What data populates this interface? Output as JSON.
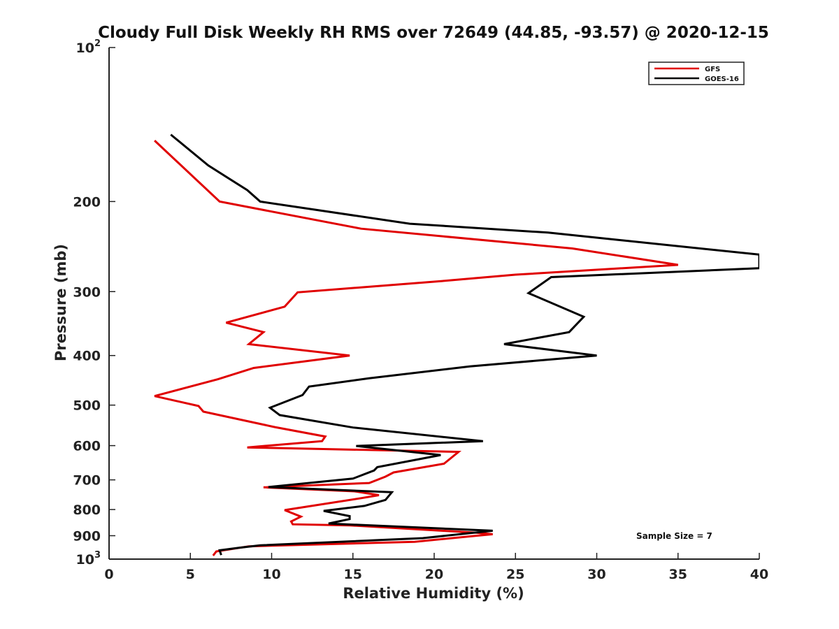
{
  "chart_data": {
    "type": "line",
    "title": "Cloudy Full Disk Weekly RH RMS over 72649 (44.85, -93.57) @ 2020-12-15",
    "xlabel": "Relative Humidity (%)",
    "ylabel": "Pressure (mb)",
    "xlim": [
      0,
      40
    ],
    "ylim": [
      100,
      1000
    ],
    "y_scale": "log",
    "y_reversed": true,
    "grid": false,
    "legend_position": "top-right",
    "x_ticks": [
      0,
      5,
      10,
      15,
      20,
      25,
      30,
      35,
      40
    ],
    "x_tick_labels": [
      "0",
      "5",
      "10",
      "15",
      "20",
      "25",
      "30",
      "35",
      "40"
    ],
    "y_ticks": [
      100,
      200,
      300,
      400,
      500,
      600,
      700,
      800,
      900,
      1000
    ],
    "y_tick_labels": [
      {
        "base": "10",
        "exp": "2"
      },
      {
        "base": "200",
        "exp": ""
      },
      {
        "base": "300",
        "exp": ""
      },
      {
        "base": "400",
        "exp": ""
      },
      {
        "base": "500",
        "exp": ""
      },
      {
        "base": "600",
        "exp": ""
      },
      {
        "base": "700",
        "exp": ""
      },
      {
        "base": "800",
        "exp": ""
      },
      {
        "base": "900",
        "exp": ""
      },
      {
        "base": "10",
        "exp": "3"
      }
    ],
    "annotation": "Sample Size = 7",
    "series": [
      {
        "name": "GFS",
        "color": "#e00000",
        "points": [
          [
            2.8,
            152
          ],
          [
            6.8,
            200
          ],
          [
            15.5,
            226
          ],
          [
            28.5,
            247
          ],
          [
            35,
            266
          ],
          [
            25,
            278
          ],
          [
            20.5,
            286
          ],
          [
            11.6,
            301
          ],
          [
            10.8,
            321
          ],
          [
            7.2,
            345
          ],
          [
            9.5,
            360
          ],
          [
            8.6,
            380
          ],
          [
            14.8,
            400
          ],
          [
            8.9,
            423
          ],
          [
            6.7,
            445
          ],
          [
            2.8,
            480
          ],
          [
            5.5,
            502
          ],
          [
            5.8,
            515
          ],
          [
            10.2,
            552
          ],
          [
            13.3,
            576
          ],
          [
            13.1,
            588
          ],
          [
            8.5,
            605
          ],
          [
            21.5,
            617
          ],
          [
            20.6,
            651
          ],
          [
            17.5,
            677
          ],
          [
            17,
            690
          ],
          [
            16,
            710
          ],
          [
            9.5,
            724
          ],
          [
            15.1,
            737
          ],
          [
            16.6,
            750
          ],
          [
            15.5,
            760
          ],
          [
            10.8,
            802
          ],
          [
            11.8,
            826
          ],
          [
            11.2,
            844
          ],
          [
            11.3,
            855
          ],
          [
            14.8,
            859
          ],
          [
            22.6,
            888
          ],
          [
            23.6,
            894
          ],
          [
            22.3,
            902
          ],
          [
            18.8,
            925
          ],
          [
            8.6,
            944
          ],
          [
            6.6,
            966
          ],
          [
            6.4,
            984
          ]
        ]
      },
      {
        "name": "GOES-16",
        "color": "#000000",
        "points": [
          [
            3.8,
            148
          ],
          [
            6.1,
            170
          ],
          [
            8.5,
            190
          ],
          [
            9.3,
            200
          ],
          [
            18.5,
            221
          ],
          [
            27,
            230
          ],
          [
            40,
            254
          ],
          [
            40,
            270
          ],
          [
            27.2,
            281
          ],
          [
            25.8,
            302
          ],
          [
            29.2,
            336
          ],
          [
            28.3,
            360
          ],
          [
            24.3,
            380
          ],
          [
            30,
            400
          ],
          [
            22.2,
            420
          ],
          [
            16,
            443
          ],
          [
            12.3,
            460
          ],
          [
            11.9,
            478
          ],
          [
            9.9,
            506
          ],
          [
            10.5,
            523
          ],
          [
            15,
            553
          ],
          [
            23,
            588
          ],
          [
            15.2,
            601
          ],
          [
            20.4,
            626
          ],
          [
            16.5,
            661
          ],
          [
            16.3,
            671
          ],
          [
            15,
            696
          ],
          [
            9.8,
            723
          ],
          [
            17.4,
            740
          ],
          [
            17,
            766
          ],
          [
            15.7,
            787
          ],
          [
            13.2,
            805
          ],
          [
            14.8,
            824
          ],
          [
            14.8,
            835
          ],
          [
            13.5,
            852
          ],
          [
            23.6,
            880
          ],
          [
            19.3,
            910
          ],
          [
            9.3,
            940
          ],
          [
            8,
            950
          ],
          [
            6.8,
            961
          ],
          [
            6.9,
            982
          ]
        ]
      }
    ]
  }
}
